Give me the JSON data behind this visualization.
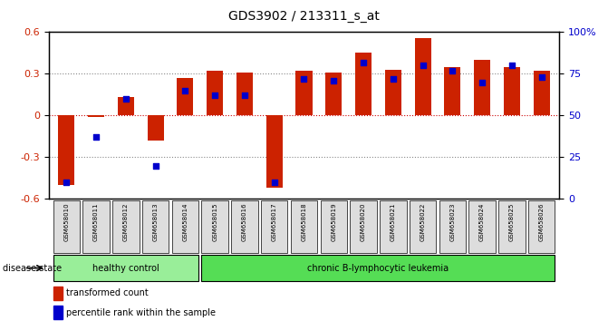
{
  "title": "GDS3902 / 213311_s_at",
  "samples": [
    "GSM658010",
    "GSM658011",
    "GSM658012",
    "GSM658013",
    "GSM658014",
    "GSM658015",
    "GSM658016",
    "GSM658017",
    "GSM658018",
    "GSM658019",
    "GSM658020",
    "GSM658021",
    "GSM658022",
    "GSM658023",
    "GSM658024",
    "GSM658025",
    "GSM658026"
  ],
  "transformed_count": [
    -0.5,
    -0.01,
    0.13,
    -0.18,
    0.27,
    0.32,
    0.31,
    -0.52,
    0.32,
    0.31,
    0.45,
    0.33,
    0.56,
    0.35,
    0.4,
    0.35,
    0.32
  ],
  "percentile_rank": [
    10,
    37,
    60,
    20,
    65,
    62,
    62,
    10,
    72,
    71,
    82,
    72,
    80,
    77,
    70,
    80,
    73
  ],
  "bar_color": "#cc2200",
  "dot_color": "#0000cc",
  "ylim_left": [
    -0.6,
    0.6
  ],
  "ylim_right": [
    0,
    100
  ],
  "yticks_left": [
    -0.6,
    -0.3,
    0,
    0.3,
    0.6
  ],
  "yticks_right": [
    0,
    25,
    50,
    75,
    100
  ],
  "ytick_labels_right": [
    "0",
    "25",
    "50",
    "75",
    "100%"
  ],
  "hlines": [
    0.3,
    0.0,
    -0.3
  ],
  "hline_colors": [
    "#888888",
    "#cc0000",
    "#888888"
  ],
  "hline_styles": [
    "dotted",
    "dotted",
    "dotted"
  ],
  "healthy_control_range": [
    0,
    4
  ],
  "leukemia_range": [
    5,
    16
  ],
  "healthy_label": "healthy control",
  "leukemia_label": "chronic B-lymphocytic leukemia",
  "disease_state_label": "disease state",
  "legend_bar_label": "transformed count",
  "legend_dot_label": "percentile rank within the sample",
  "background_color": "#ffffff",
  "plot_bg_color": "#ffffff",
  "group_box_color": "#dddddd",
  "healthy_fill": "#99ee99",
  "leukemia_fill": "#55dd55"
}
